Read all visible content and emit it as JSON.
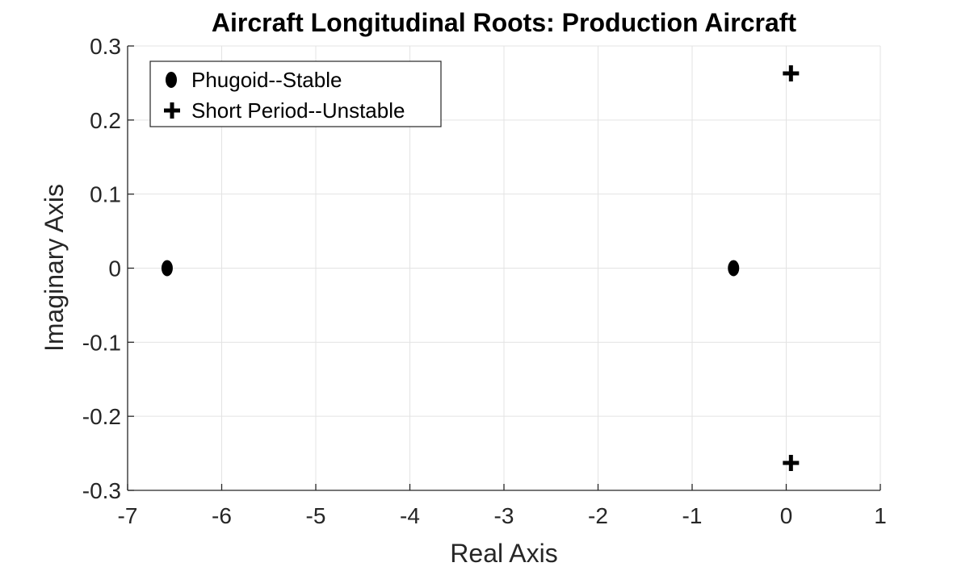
{
  "chart_data": {
    "type": "scatter",
    "title": "Aircraft Longitudinal Roots: Production Aircraft",
    "xlabel": "Real Axis",
    "ylabel": "Imaginary Axis",
    "xlim": [
      -7,
      1
    ],
    "ylim": [
      -0.3,
      0.3
    ],
    "xticks": [
      -7,
      -6,
      -5,
      -4,
      -3,
      -2,
      -1,
      0,
      1
    ],
    "yticks": [
      -0.3,
      -0.2,
      -0.1,
      0,
      0.1,
      0.2,
      0.3
    ],
    "xtick_labels": [
      "-7",
      "-6",
      "-5",
      "-4",
      "-3",
      "-2",
      "-1",
      "0",
      "1"
    ],
    "ytick_labels": [
      "-0.3",
      "-0.2",
      "-0.1",
      "0",
      "0.1",
      "0.2",
      "0.3"
    ],
    "grid": true,
    "legend_position": "top-left",
    "series": [
      {
        "name": "Phugoid--Stable",
        "marker": "diamond",
        "color": "#000000",
        "points": [
          {
            "x": -6.58,
            "y": 0
          },
          {
            "x": -0.56,
            "y": 0
          }
        ]
      },
      {
        "name": "Short Period--Unstable",
        "marker": "plus",
        "color": "#000000",
        "points": [
          {
            "x": 0.05,
            "y": 0.263
          },
          {
            "x": 0.05,
            "y": -0.263
          }
        ]
      }
    ]
  }
}
